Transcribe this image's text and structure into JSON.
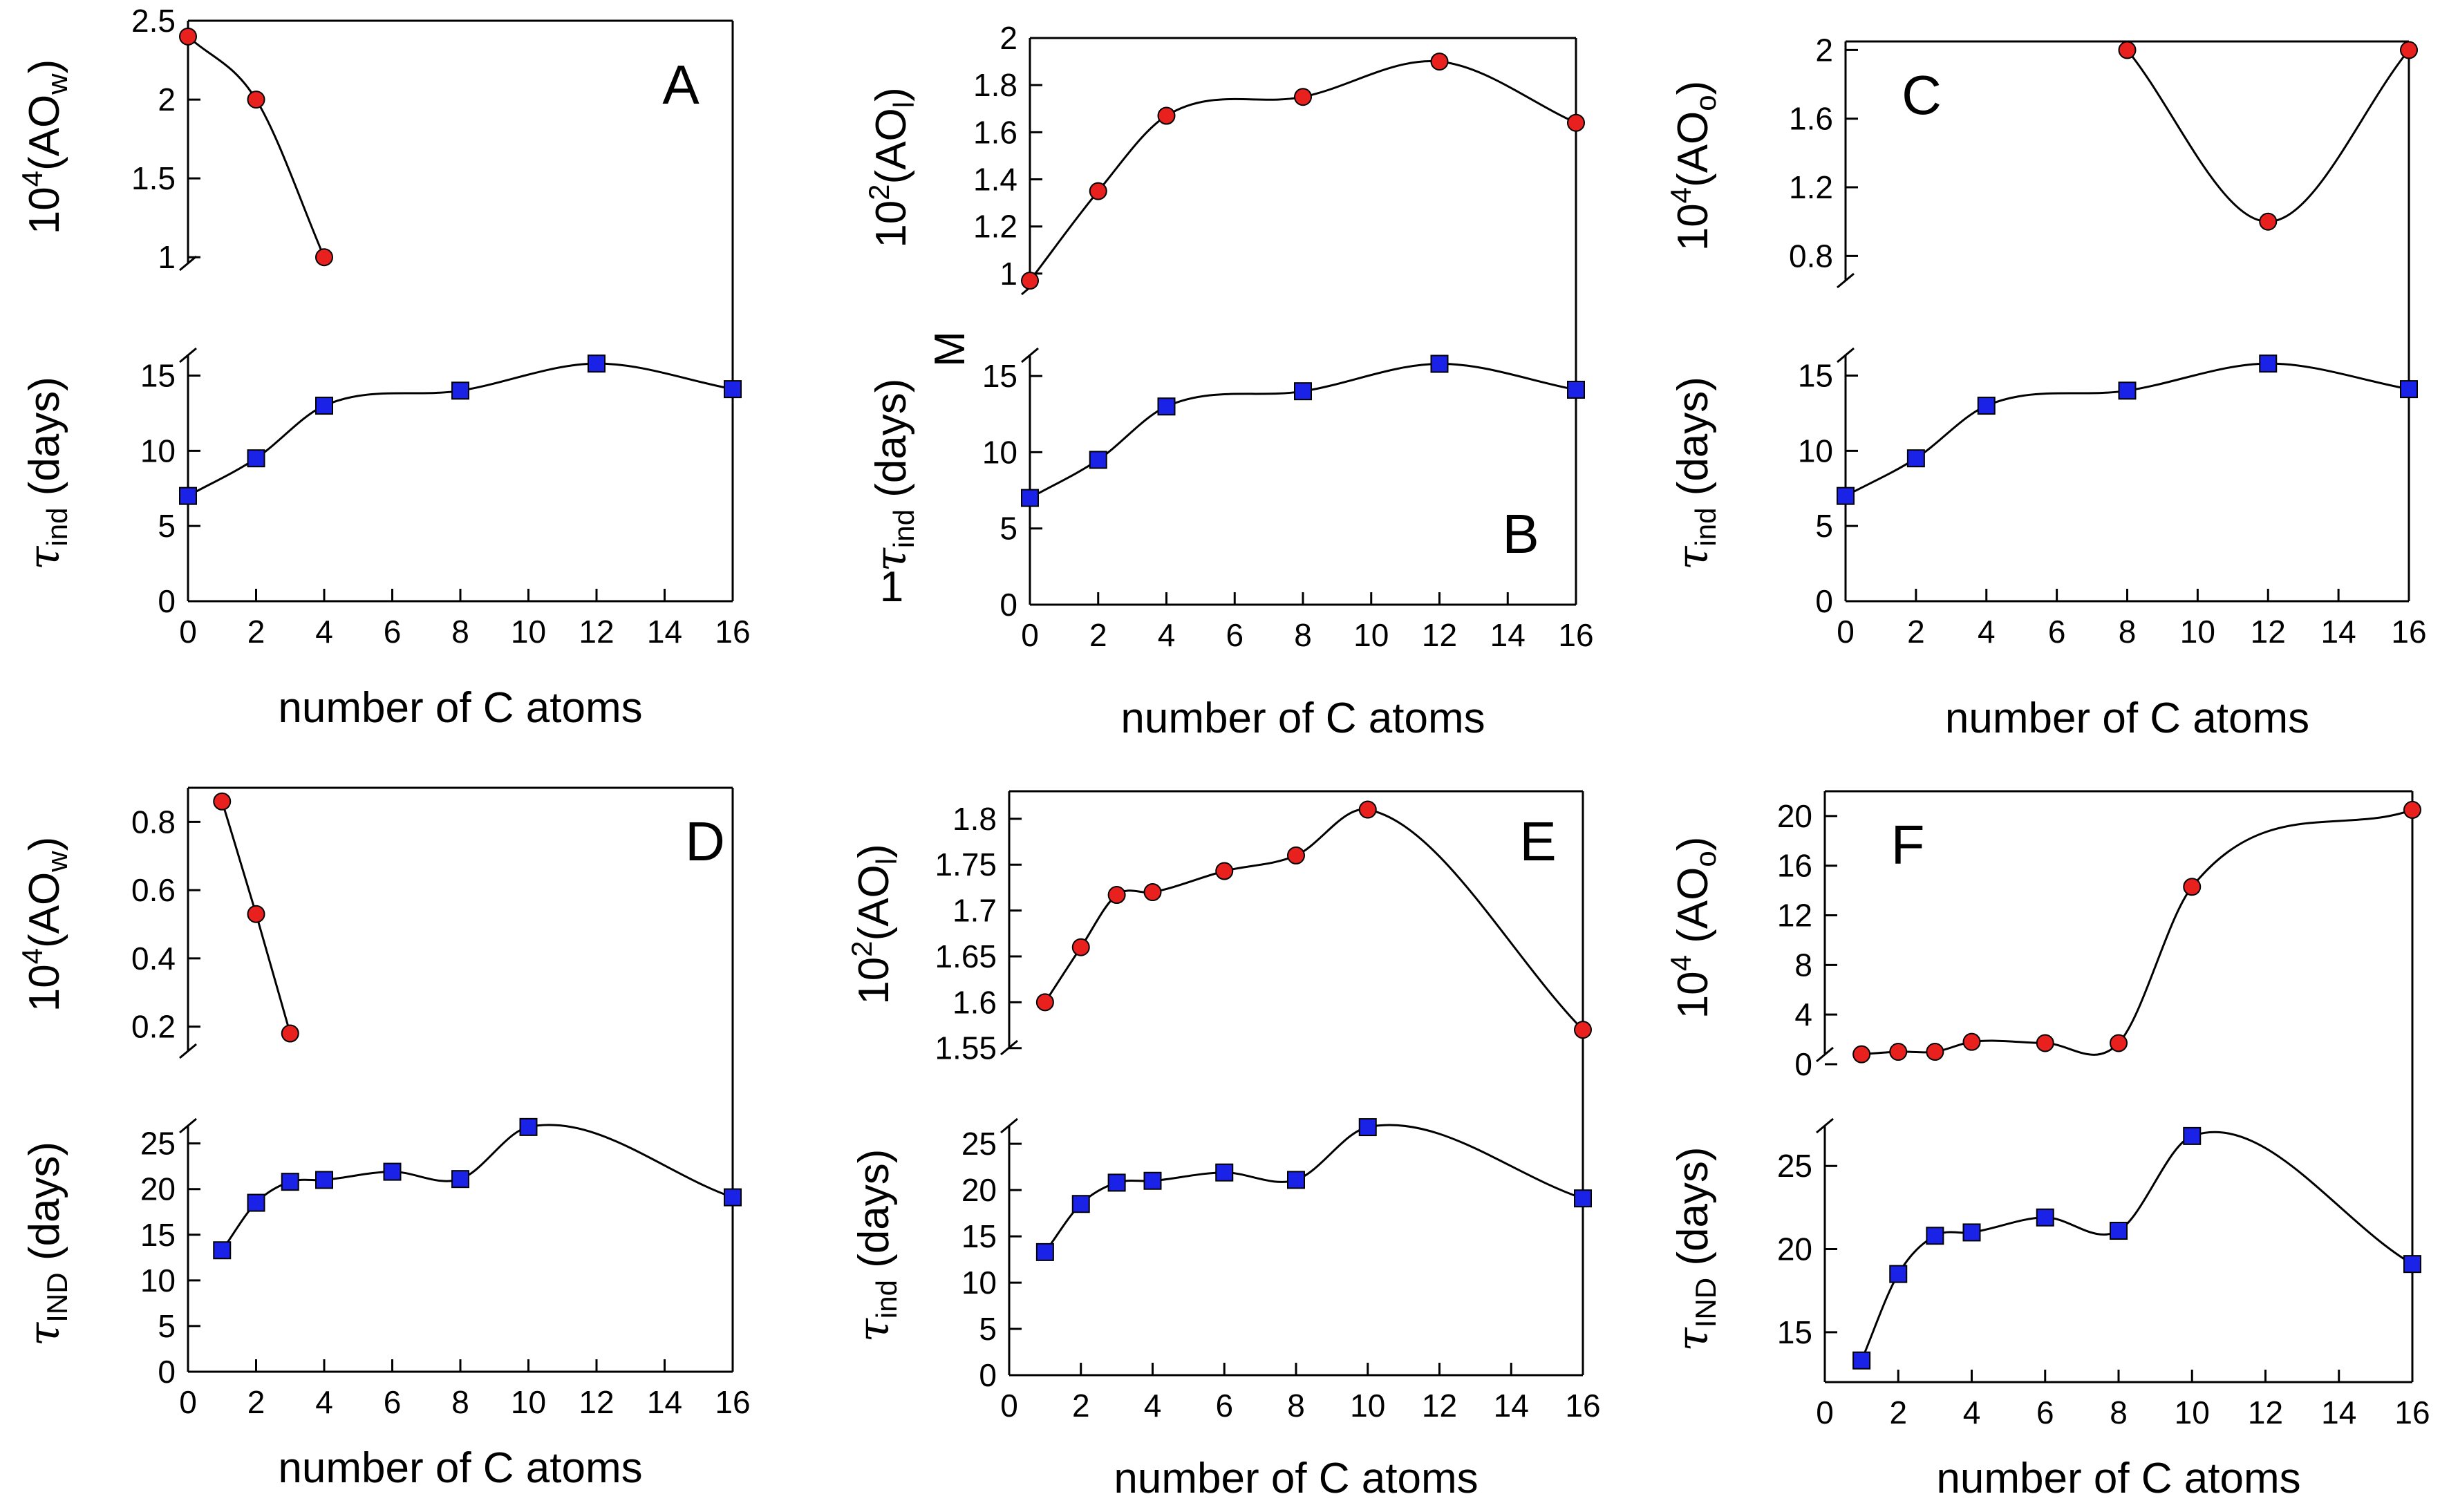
{
  "figure_title": "",
  "chart_data": [
    {
      "type": "line",
      "panel": "A",
      "xlabel": "number of C atoms",
      "x_ticks": [
        "0",
        "2",
        "4",
        "6",
        "8",
        "10",
        "12",
        "14",
        "16"
      ],
      "xlim": [
        0,
        16
      ],
      "top": {
        "ylabel_base": "10",
        "ylabel_sup": "4",
        "ylabel_rest": "(AO",
        "ylabel_sub": "w",
        "ylabel_end": ")",
        "ylim": [
          0.9,
          2.5
        ],
        "y_ticks": [
          1,
          1.5,
          2,
          2.5
        ],
        "y_tick_labels": [
          "1",
          "1.5",
          "2",
          "2.5"
        ],
        "x": [
          0,
          2,
          4
        ],
        "y": [
          2.4,
          2.0,
          1.0
        ],
        "marker": "circle",
        "color": "#e8211e"
      },
      "bottom": {
        "ylabel_sym": "τ",
        "ylabel_sub": "ind",
        "ylabel_end": " (days)",
        "ylim": [
          0,
          17
        ],
        "y_ticks": [
          0,
          5,
          10,
          15
        ],
        "y_tick_labels": [
          "0",
          "5",
          "10",
          "15"
        ],
        "x": [
          0,
          2,
          4,
          8,
          12,
          16
        ],
        "y": [
          7,
          9.5,
          13,
          14,
          15.8,
          14.1
        ],
        "marker": "square",
        "color": "#1b22e8"
      }
    },
    {
      "type": "line",
      "panel": "B",
      "xlabel": "number of C atoms",
      "x_ticks": [
        "0",
        "2",
        "4",
        "6",
        "8",
        "10",
        "12",
        "14",
        "16"
      ],
      "xlim": [
        0,
        16
      ],
      "extra_text": [
        "M",
        "1"
      ],
      "top": {
        "ylabel_base": "10",
        "ylabel_sup": "2",
        "ylabel_rest": "(AO",
        "ylabel_sub": "l",
        "ylabel_end": ")",
        "ylim": [
          0.9,
          2.0
        ],
        "y_ticks": [
          1,
          1.2,
          1.4,
          1.6,
          1.8,
          2
        ],
        "y_tick_labels": [
          "1",
          "1.2",
          "1.4",
          "1.6",
          "1.8",
          "2"
        ],
        "x": [
          0,
          2,
          4,
          8,
          12,
          16
        ],
        "y": [
          0.97,
          1.35,
          1.67,
          1.75,
          1.9,
          1.64
        ],
        "marker": "circle",
        "color": "#e8211e"
      },
      "bottom": {
        "ylabel_sym": "τ",
        "ylabel_sub": "ind",
        "ylabel_end": " (days)",
        "ylim": [
          0,
          17
        ],
        "y_ticks": [
          0,
          5,
          10,
          15
        ],
        "y_tick_labels": [
          "0",
          "5",
          "10",
          "15"
        ],
        "x": [
          0,
          2,
          4,
          8,
          12,
          16
        ],
        "y": [
          7,
          9.5,
          13,
          14,
          15.8,
          14.1
        ],
        "marker": "square",
        "color": "#1b22e8"
      }
    },
    {
      "type": "line",
      "panel": "C",
      "xlabel": "number of C atoms",
      "x_ticks": [
        "0",
        "2",
        "4",
        "6",
        "8",
        "10",
        "12",
        "14",
        "16"
      ],
      "xlim": [
        0,
        16
      ],
      "top": {
        "ylabel_base": "10",
        "ylabel_sup": "4",
        "ylabel_rest": "(AO",
        "ylabel_sub": "o",
        "ylabel_end": ")",
        "ylim": [
          0.6,
          2.05
        ],
        "y_ticks": [
          0.8,
          1.2,
          1.6,
          2
        ],
        "y_tick_labels": [
          "0.8",
          "1.2",
          "1.6",
          "2"
        ],
        "x": [
          8,
          12,
          16
        ],
        "y": [
          2.0,
          1.0,
          2.0
        ],
        "marker": "circle",
        "color": "#e8211e"
      },
      "bottom": {
        "ylabel_sym": "τ",
        "ylabel_sub": "ind",
        "ylabel_end": " (days)",
        "ylim": [
          0,
          17
        ],
        "y_ticks": [
          0,
          5,
          10,
          15
        ],
        "y_tick_labels": [
          "0",
          "5",
          "10",
          "15"
        ],
        "x": [
          0,
          2,
          4,
          8,
          12,
          16
        ],
        "y": [
          7,
          9.5,
          13,
          14,
          15.8,
          14.1
        ],
        "marker": "square",
        "color": "#1b22e8"
      }
    },
    {
      "type": "line",
      "panel": "D",
      "xlabel": "number of C atoms",
      "x_ticks": [
        "0",
        "2",
        "4",
        "6",
        "8",
        "10",
        "12",
        "14",
        "16"
      ],
      "xlim": [
        0,
        16
      ],
      "top": {
        "ylabel_base": "10",
        "ylabel_sup": "4",
        "ylabel_rest": "(AO",
        "ylabel_sub": "w",
        "ylabel_end": ")",
        "ylim": [
          0.1,
          0.9
        ],
        "y_ticks": [
          0.2,
          0.4,
          0.6,
          0.8
        ],
        "y_tick_labels": [
          "0.2",
          "0.4",
          "0.6",
          "0.8"
        ],
        "x": [
          1,
          2,
          3
        ],
        "y": [
          0.86,
          0.53,
          0.18
        ],
        "marker": "circle",
        "color": "#e8211e"
      },
      "bottom": {
        "ylabel_sym": "τ",
        "ylabel_sub": "IND",
        "ylabel_end": " (days)",
        "ylim": [
          0,
          28
        ],
        "y_ticks": [
          0,
          5,
          10,
          15,
          20,
          25
        ],
        "y_tick_labels": [
          "0",
          "5",
          "10",
          "15",
          "20",
          "25"
        ],
        "x": [
          1,
          2,
          3,
          4,
          6,
          8,
          10,
          16
        ],
        "y": [
          13.3,
          18.5,
          20.8,
          21,
          21.9,
          21.1,
          26.8,
          19.1
        ],
        "marker": "square",
        "color": "#1b22e8"
      }
    },
    {
      "type": "line",
      "panel": "E",
      "xlabel": "number of C atoms",
      "x_ticks": [
        "0",
        "2",
        "4",
        "6",
        "8",
        "10",
        "12",
        "14",
        "16"
      ],
      "xlim": [
        0,
        16
      ],
      "top": {
        "ylabel_base": "10",
        "ylabel_sup": "2",
        "ylabel_rest": "(AO",
        "ylabel_sub": "l",
        "ylabel_end": ")",
        "ylim": [
          1.54,
          1.83
        ],
        "y_ticks": [
          1.55,
          1.6,
          1.65,
          1.7,
          1.75,
          1.8
        ],
        "y_tick_labels": [
          "1.55",
          "1.6",
          "1.65",
          "1.7",
          "1.75",
          "1.8"
        ],
        "x": [
          1,
          2,
          3,
          4,
          6,
          8,
          10,
          16
        ],
        "y": [
          1.6,
          1.66,
          1.717,
          1.72,
          1.743,
          1.76,
          1.81,
          1.57
        ],
        "marker": "circle",
        "color": "#e8211e"
      },
      "bottom": {
        "ylabel_sym": "τ",
        "ylabel_sub": "ind",
        "ylabel_end": " (days)",
        "ylim": [
          0,
          28
        ],
        "y_ticks": [
          0,
          5,
          10,
          15,
          20,
          25
        ],
        "y_tick_labels": [
          "0",
          "5",
          "10",
          "15",
          "20",
          "25"
        ],
        "x": [
          1,
          2,
          3,
          4,
          6,
          8,
          10,
          16
        ],
        "y": [
          13.3,
          18.5,
          20.8,
          21,
          21.9,
          21.1,
          26.8,
          19.1
        ],
        "marker": "square",
        "color": "#1b22e8"
      }
    },
    {
      "type": "line",
      "panel": "F",
      "xlabel": "number of C atoms",
      "x_ticks": [
        "0",
        "2",
        "4",
        "6",
        "8",
        "10",
        "12",
        "14",
        "16"
      ],
      "xlim": [
        0,
        16
      ],
      "top": {
        "ylabel_base": "10",
        "ylabel_sup": "4",
        "ylabel_rest": " (AO",
        "ylabel_sub": "o",
        "ylabel_end": ")",
        "ylim": [
          0,
          22
        ],
        "y_ticks": [
          0,
          4,
          8,
          12,
          16,
          20
        ],
        "y_tick_labels": [
          "0",
          "4",
          "8",
          "12",
          "16",
          "20"
        ],
        "x": [
          1,
          2,
          3,
          4,
          6,
          8,
          10,
          16
        ],
        "y": [
          0.8,
          1.0,
          1.0,
          1.8,
          1.7,
          1.7,
          14.3,
          20.5
        ],
        "marker": "circle",
        "color": "#e8211e"
      },
      "bottom": {
        "ylabel_sym": "τ",
        "ylabel_sub": "IND",
        "ylabel_end": " (days)",
        "ylim": [
          12,
          28
        ],
        "y_ticks": [
          15,
          20,
          25
        ],
        "y_tick_labels": [
          "15",
          "20",
          "25"
        ],
        "x": [
          1,
          2,
          3,
          4,
          6,
          8,
          10,
          16
        ],
        "y": [
          13.3,
          18.5,
          20.8,
          21,
          21.9,
          21.1,
          26.8,
          19.1
        ],
        "marker": "square",
        "color": "#1b22e8"
      }
    }
  ]
}
